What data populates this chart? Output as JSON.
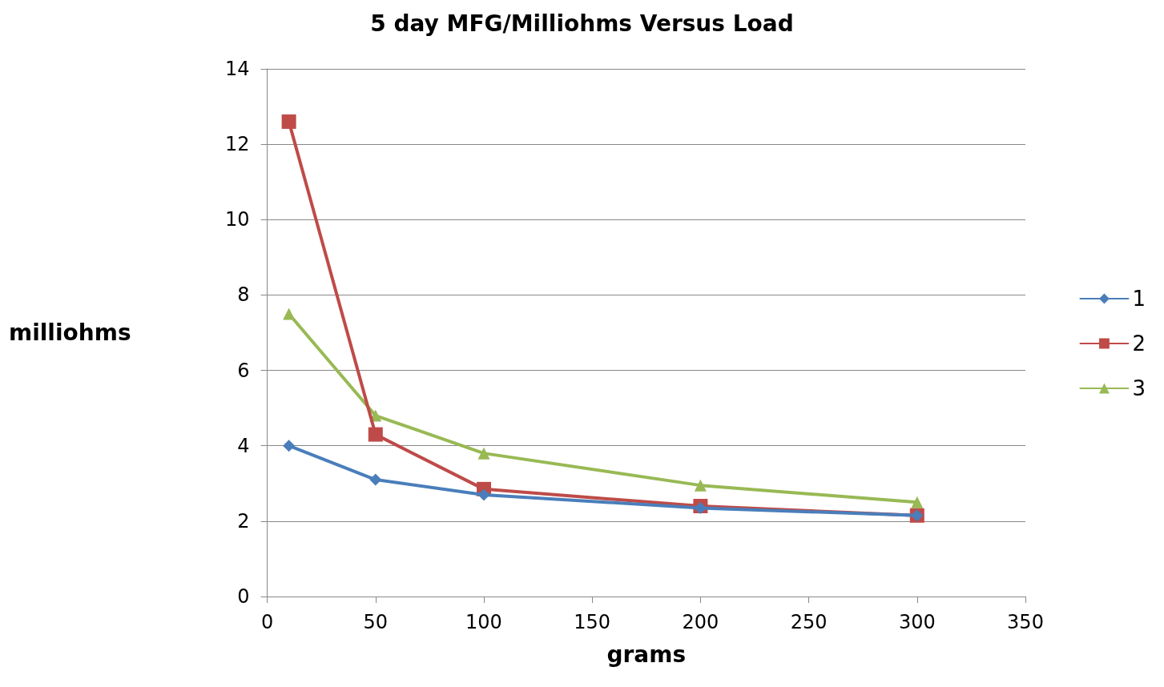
{
  "chart_data": {
    "type": "line",
    "title": "5 day MFG/Milliohms Versus Load",
    "xlabel": "grams",
    "ylabel": "milliohms",
    "x": [
      10,
      50,
      100,
      200,
      300
    ],
    "series": [
      {
        "name": "1",
        "color": "#4a7ebb",
        "marker": "diamond",
        "values": [
          4.0,
          3.1,
          2.7,
          2.35,
          2.15
        ]
      },
      {
        "name": "2",
        "color": "#be4b48",
        "marker": "square",
        "values": [
          12.6,
          4.3,
          2.85,
          2.4,
          2.15
        ]
      },
      {
        "name": "3",
        "color": "#98b954",
        "marker": "triangle",
        "values": [
          7.5,
          4.8,
          3.8,
          2.95,
          2.5
        ]
      }
    ],
    "xlim": [
      0,
      350
    ],
    "xticks": [
      0,
      50,
      100,
      150,
      200,
      250,
      300,
      350
    ],
    "ylim": [
      0,
      14
    ],
    "yticks": [
      0,
      2,
      4,
      6,
      8,
      10,
      12,
      14
    ],
    "grid": "y",
    "legend": "right",
    "line_style": "solid"
  }
}
